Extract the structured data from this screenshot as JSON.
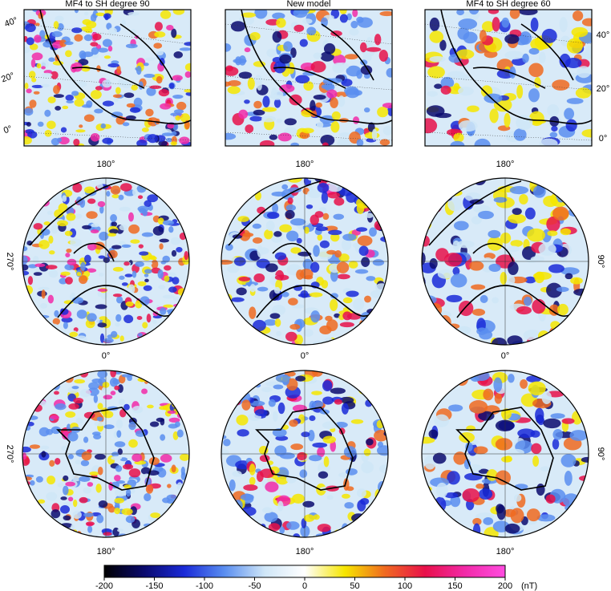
{
  "panel_titles": [
    "MF4 to SH degree 90",
    "New model",
    "MF4 to SH degree 60"
  ],
  "lat_labels_left": [
    "40°",
    "20°",
    "0°"
  ],
  "lat_labels_right": [
    "40°",
    "20°",
    "0°"
  ],
  "north_pole": {
    "top": "180°",
    "left": "270°",
    "right": "90°"
  },
  "south_pole": {
    "top": "0°",
    "bottom": "180°",
    "left": "270°",
    "right": "90°"
  },
  "colorbar": {
    "range": [
      -200,
      200
    ],
    "ticks": [
      -200,
      -150,
      -100,
      -50,
      0,
      50,
      100,
      150,
      200
    ],
    "unit": "(nT)",
    "colors": [
      "#000000",
      "#0a0a6e",
      "#1a2ad8",
      "#5a8ef0",
      "#cfe6f7",
      "#ffffff",
      "#f6e600",
      "#f06a20",
      "#e8104a",
      "#f22aa8",
      "#ff4ce0"
    ]
  }
}
